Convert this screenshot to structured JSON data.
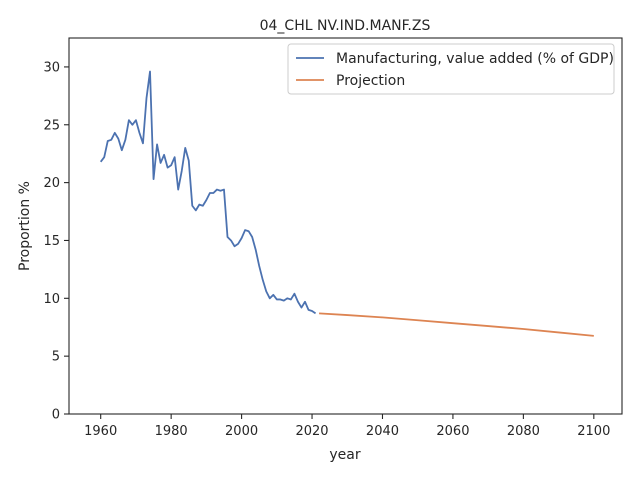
{
  "chart_data": {
    "type": "line",
    "title": "04_CHL NV.IND.MANF.ZS",
    "xlabel": "year",
    "ylabel": "Proportion %",
    "xlim": [
      1951,
      2108
    ],
    "ylim": [
      0,
      32.5
    ],
    "xticks": [
      1960,
      1980,
      2000,
      2020,
      2040,
      2060,
      2080,
      2100
    ],
    "yticks": [
      0,
      5,
      10,
      15,
      20,
      25,
      30
    ],
    "grid": false,
    "legend_position": "top-right",
    "series": [
      {
        "name": "Manufacturing, value added (% of GDP)",
        "color": "#4c72b0",
        "x": [
          1960,
          1961,
          1962,
          1963,
          1964,
          1965,
          1966,
          1967,
          1968,
          1969,
          1970,
          1971,
          1972,
          1973,
          1974,
          1975,
          1976,
          1977,
          1978,
          1979,
          1980,
          1981,
          1982,
          1983,
          1984,
          1985,
          1986,
          1987,
          1988,
          1989,
          1990,
          1991,
          1992,
          1993,
          1994,
          1995,
          1996,
          1997,
          1998,
          1999,
          2000,
          2001,
          2002,
          2003,
          2004,
          2005,
          2006,
          2007,
          2008,
          2009,
          2010,
          2011,
          2012,
          2013,
          2014,
          2015,
          2016,
          2017,
          2018,
          2019,
          2020,
          2021
        ],
        "y": [
          21.8,
          22.2,
          23.6,
          23.7,
          24.3,
          23.8,
          22.8,
          23.7,
          25.4,
          25.0,
          25.4,
          24.3,
          23.4,
          27.3,
          29.6,
          20.3,
          23.3,
          21.7,
          22.4,
          21.3,
          21.5,
          22.2,
          19.4,
          21.0,
          23.0,
          21.9,
          18.0,
          17.6,
          18.1,
          18.0,
          18.5,
          19.1,
          19.1,
          19.4,
          19.3,
          19.4,
          15.3,
          15.0,
          14.5,
          14.7,
          15.2,
          15.9,
          15.8,
          15.3,
          14.2,
          12.8,
          11.6,
          10.6,
          10.0,
          10.3,
          9.9,
          9.9,
          9.8,
          10.0,
          9.9,
          10.4,
          9.7,
          9.2,
          9.7,
          9.0,
          8.9,
          8.7
        ]
      },
      {
        "name": "Projection",
        "color": "#dd8452",
        "x": [
          2022,
          2030,
          2040,
          2050,
          2060,
          2070,
          2080,
          2090,
          2100
        ],
        "y": [
          8.7,
          8.55,
          8.35,
          8.1,
          7.85,
          7.6,
          7.35,
          7.05,
          6.75
        ]
      }
    ]
  }
}
